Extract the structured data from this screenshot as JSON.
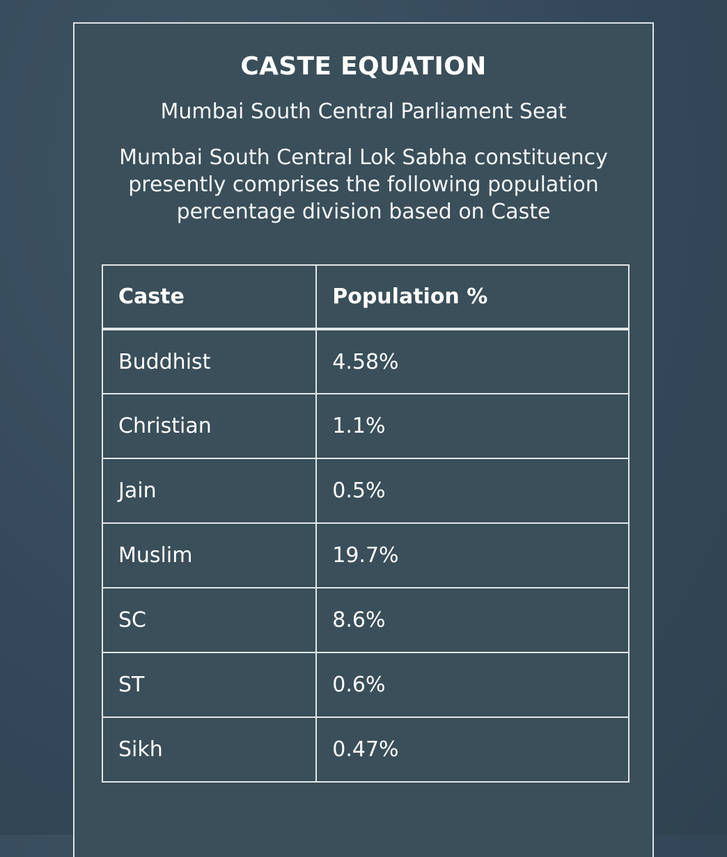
{
  "heading": "CASTE EQUATION",
  "subtitle": "Mumbai South Central Parliament Seat",
  "description": "Mumbai South Central Lok Sabha constituency presently comprises the following population percentage division based on Caste",
  "table": {
    "headers": [
      "Caste",
      "Population %"
    ],
    "rows": [
      {
        "caste": "Buddhist",
        "population": "4.58%"
      },
      {
        "caste": "Christian",
        "population": "1.1%"
      },
      {
        "caste": "Jain",
        "population": "0.5%"
      },
      {
        "caste": "Muslim",
        "population": "19.7%"
      },
      {
        "caste": "SC",
        "population": "8.6%"
      },
      {
        "caste": "ST",
        "population": "0.6%"
      },
      {
        "caste": "Sikh",
        "population": "0.47%"
      }
    ]
  },
  "colors": {
    "background": "#34485a",
    "panel": "#3a4f5a",
    "border": "#e4e7e9",
    "text": "#ffffff"
  }
}
